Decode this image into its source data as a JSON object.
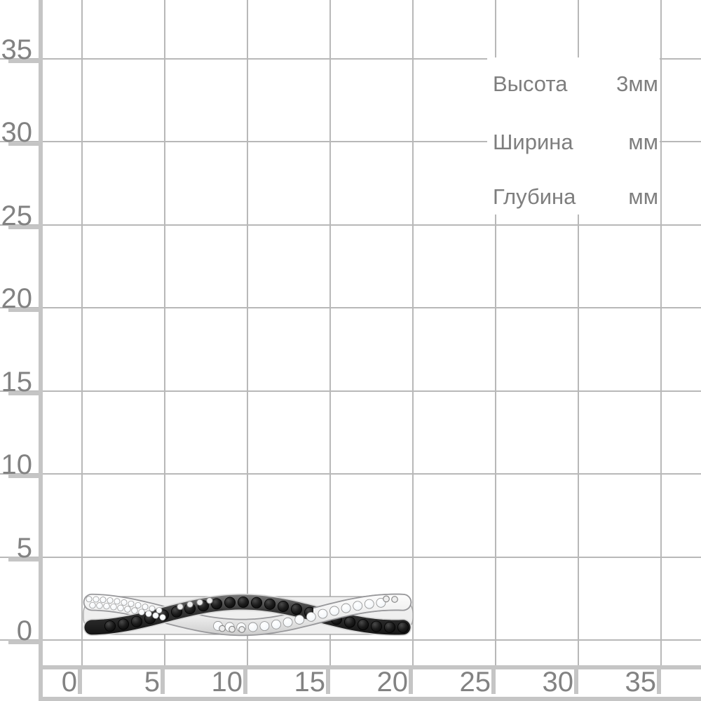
{
  "axes": {
    "x_labels": [
      "0",
      "5",
      "10",
      "15",
      "20",
      "25",
      "30",
      "35"
    ],
    "y_labels": [
      "0",
      "5",
      "10",
      "15",
      "20",
      "25",
      "30",
      "35"
    ],
    "grid_color": "#b8b8b8",
    "axis_color": "#c5c5c5",
    "label_color": "#828282"
  },
  "dimensions": {
    "text_color": "#7e7e7e",
    "rows": [
      {
        "label": "Высота",
        "value": "3мм"
      },
      {
        "label": "Ширина",
        "value": "мм"
      },
      {
        "label": "Глубина",
        "value": "мм"
      }
    ]
  },
  "product": {
    "type": "twisted-ring-photo",
    "stone_colors": {
      "dark": "#101010",
      "light": "#ffffff"
    },
    "metal_color": "#e9e9e9"
  }
}
